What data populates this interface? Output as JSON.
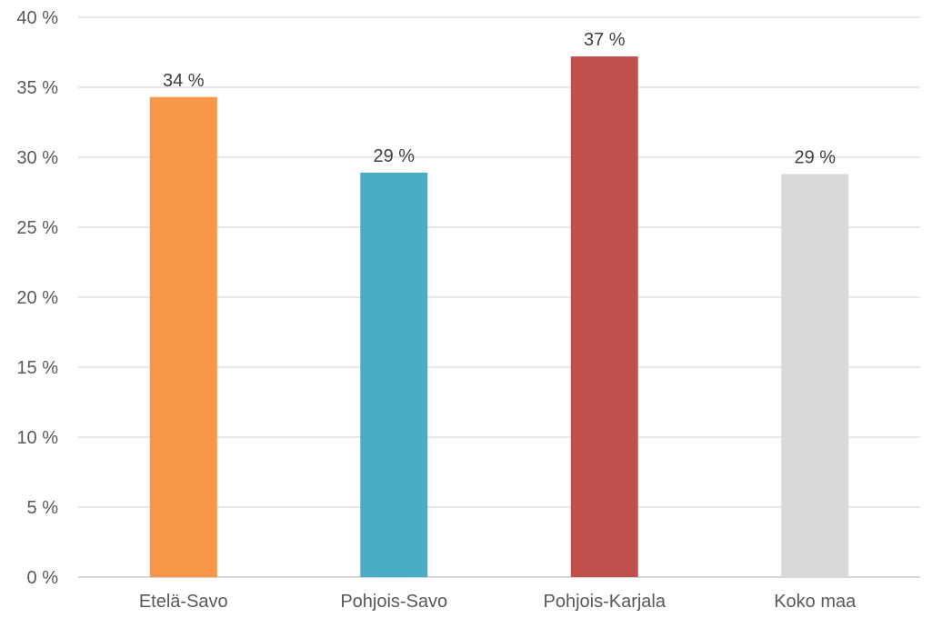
{
  "chart_data": {
    "type": "bar",
    "title": "",
    "xlabel": "",
    "ylabel": "",
    "categories": [
      "Etelä-Savo",
      "Pohjois-Savo",
      "Pohjois-Karjala",
      "Koko maa"
    ],
    "values": [
      34.3,
      28.9,
      37.2,
      28.8
    ],
    "data_labels": [
      "34 %",
      "29 %",
      "37 %",
      "29 %"
    ],
    "colors": [
      "#f79646",
      "#4bacc6",
      "#c0504d",
      "#d9d9d9"
    ],
    "ylim": [
      0,
      40
    ],
    "y_ticks": [
      0,
      5,
      10,
      15,
      20,
      25,
      30,
      35,
      40
    ],
    "y_tick_labels": [
      "0 %",
      "5 %",
      "10 %",
      "15 %",
      "20 %",
      "25 %",
      "30 %",
      "35 %",
      "40 %"
    ],
    "grid": true,
    "legend": "none"
  }
}
